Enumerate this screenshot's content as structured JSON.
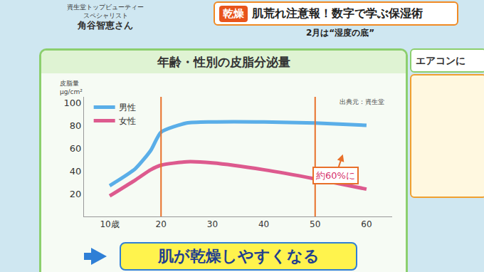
{
  "header": {
    "guest": [
      "資生堂トップビューティー",
      "スペシャリスト"
    ],
    "guest_name": "角谷智恵さん",
    "badge": "乾燥",
    "headline": "肌荒れ注意報！数字で学ぶ保湿術",
    "subline": "2月は“湿度の底”"
  },
  "side": {
    "text": "エアコンに"
  },
  "chart_data": {
    "type": "line",
    "title": "年齢・性別の皮脂分泌量",
    "y_label": "皮脂量",
    "y_unit": "μg/cm²",
    "source": "出典元：資生堂",
    "x": [
      10,
      15,
      18,
      20,
      25,
      30,
      40,
      50,
      60
    ],
    "series": [
      {
        "name": "男性",
        "color": "#5aaee8",
        "values": [
          27,
          42,
          58,
          74,
          82,
          83,
          83,
          82,
          80
        ]
      },
      {
        "name": "女性",
        "color": "#dd5a8e",
        "values": [
          18,
          32,
          41,
          45,
          48,
          47,
          41,
          33,
          24
        ]
      }
    ],
    "xlim": [
      5,
      65
    ],
    "xticks": [
      {
        "value": 10,
        "label": "10歳"
      },
      20,
      30,
      40,
      50,
      60
    ],
    "ylim": [
      0,
      105
    ],
    "yticks": [
      20,
      40,
      60,
      80,
      100
    ],
    "grid": false,
    "legend": "upper left",
    "vlines": [
      20,
      50
    ],
    "annotations": [
      "約60%に"
    ],
    "conclusion": "肌が乾燥しやすくなる"
  }
}
